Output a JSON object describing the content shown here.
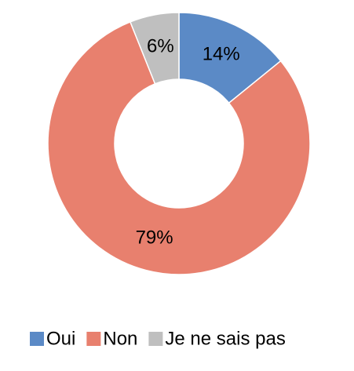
{
  "chart_data": {
    "type": "donut",
    "categories": [
      "Oui",
      "Non",
      "Je ne sais pas"
    ],
    "values": [
      14,
      79,
      6
    ],
    "value_labels": [
      "14%",
      "79%",
      "6%"
    ],
    "colors": [
      "#5b8ac6",
      "#e8806e",
      "#bfbfbf"
    ],
    "legend": "bottom"
  }
}
